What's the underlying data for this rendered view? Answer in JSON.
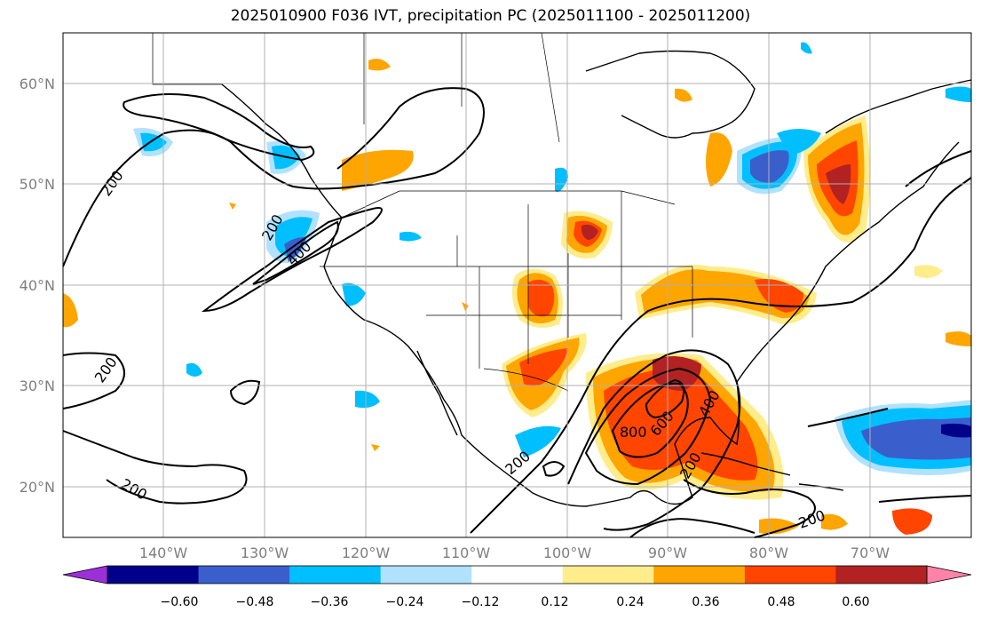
{
  "title": "2025010900 F036 IVT, precipitation PC (2025011100 - 2025011200)",
  "map": {
    "lat_labels": [
      "60°N",
      "50°N",
      "40°N",
      "30°N",
      "20°N"
    ],
    "lon_labels": [
      "140°W",
      "130°W",
      "120°W",
      "110°W",
      "100°W",
      "90°W",
      "80°W",
      "70°W"
    ],
    "extent": {
      "lon_min": -150,
      "lon_max": -60,
      "lat_min": 15,
      "lat_max": 65
    },
    "gridlines": true,
    "ivt_contour_labels": [
      "200",
      "200",
      "400",
      "200",
      "200",
      "800",
      "600",
      "400",
      "200",
      "200",
      "200"
    ]
  },
  "colorbar": {
    "tick_labels": [
      "−0.60",
      "−0.48",
      "−0.36",
      "−0.24",
      "−0.12",
      "0.12",
      "0.24",
      "0.36",
      "0.48",
      "0.60"
    ],
    "colors": [
      "#9b30d9",
      "#00008b",
      "#3a5fcd",
      "#00bfff",
      "#b0e2ff",
      "#ffffff",
      "#ffec8b",
      "#ffa500",
      "#ff4500",
      "#b22222",
      "#ff82ab"
    ]
  }
}
